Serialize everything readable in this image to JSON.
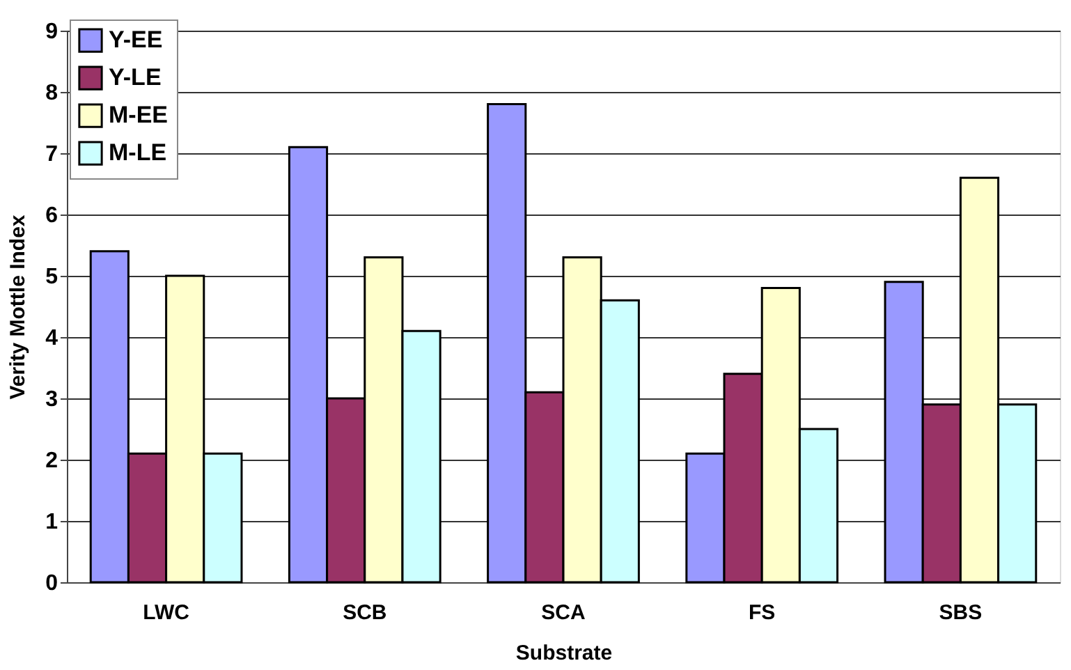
{
  "chart_data": {
    "type": "bar",
    "xlabel": "Substrate",
    "ylabel": "Verity Mottle Index",
    "categories": [
      "LWC",
      "SCB",
      "SCA",
      "FS",
      "SBS"
    ],
    "series": [
      {
        "name": "Y-EE",
        "color": "#9999ff",
        "values": [
          5.4,
          7.1,
          7.8,
          2.1,
          4.9
        ]
      },
      {
        "name": "Y-LE",
        "color": "#993366",
        "values": [
          2.1,
          3.0,
          3.1,
          3.4,
          2.9
        ]
      },
      {
        "name": "M-EE",
        "color": "#ffffcc",
        "values": [
          5.0,
          5.3,
          5.3,
          4.8,
          6.6
        ]
      },
      {
        "name": "M-LE",
        "color": "#ccffff",
        "values": [
          2.1,
          4.1,
          4.6,
          2.5,
          2.9
        ]
      }
    ],
    "ylim": [
      0,
      9
    ],
    "yticks": [
      0,
      1,
      2,
      3,
      4,
      5,
      6,
      7,
      8,
      9
    ],
    "grid": "y",
    "legend": "top left"
  }
}
